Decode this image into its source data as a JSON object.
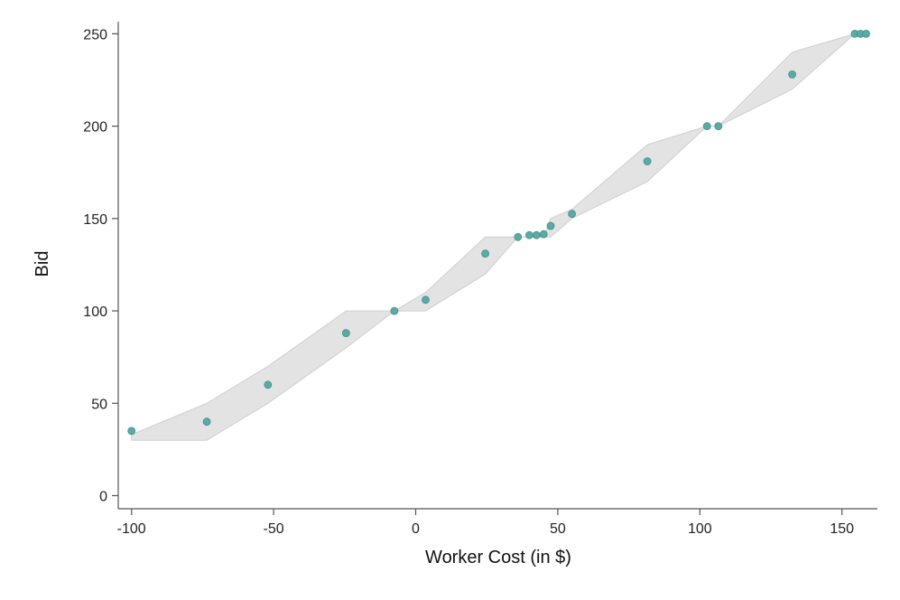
{
  "chart_data": {
    "type": "scatter",
    "title": "",
    "xlabel": "Worker Cost (in $)",
    "ylabel": "Bid",
    "xlim": [
      -105,
      162
    ],
    "ylim": [
      -7,
      253
    ],
    "xticks": [
      -100,
      -50,
      0,
      50,
      100,
      150
    ],
    "xtick_labels": [
      "-100",
      "-50",
      "0",
      "50",
      "100",
      "150"
    ],
    "yticks": [
      0,
      50,
      100,
      150,
      200,
      250
    ],
    "ytick_labels": [
      "0",
      "50",
      "100",
      "150",
      "200",
      "250"
    ],
    "grid": false,
    "legend": null,
    "series": [
      {
        "type": "scatter",
        "color": "#5aaaa5",
        "points": [
          {
            "x": -100,
            "y": 35
          },
          {
            "x": -73.5,
            "y": 40
          },
          {
            "x": -52,
            "y": 60
          },
          {
            "x": -24.5,
            "y": 88
          },
          {
            "x": -7.5,
            "y": 100
          },
          {
            "x": 3.5,
            "y": 106
          },
          {
            "x": 24.5,
            "y": 131
          },
          {
            "x": 36,
            "y": 140
          },
          {
            "x": 40,
            "y": 141
          },
          {
            "x": 42.5,
            "y": 141
          },
          {
            "x": 45,
            "y": 141.5
          },
          {
            "x": 47.5,
            "y": 146
          },
          {
            "x": 55,
            "y": 152.5
          },
          {
            "x": 81.5,
            "y": 181
          },
          {
            "x": 102.5,
            "y": 200
          },
          {
            "x": 106.5,
            "y": 200
          },
          {
            "x": 132.5,
            "y": 228
          },
          {
            "x": 154.5,
            "y": 250
          },
          {
            "x": 156.5,
            "y": 250
          },
          {
            "x": 158.5,
            "y": 250
          }
        ]
      },
      {
        "type": "area_band",
        "color": "#d9d9d9",
        "upper": [
          {
            "x": -100,
            "y": 33
          },
          {
            "x": -73.5,
            "y": 50
          },
          {
            "x": -52,
            "y": 70
          },
          {
            "x": -24.5,
            "y": 100
          },
          {
            "x": -7.5,
            "y": 100
          },
          {
            "x": 3.5,
            "y": 110
          },
          {
            "x": 24.5,
            "y": 140
          },
          {
            "x": 36,
            "y": 140
          },
          {
            "x": 45,
            "y": 140
          },
          {
            "x": 47.5,
            "y": 150
          },
          {
            "x": 55,
            "y": 155
          },
          {
            "x": 81.5,
            "y": 190
          },
          {
            "x": 102.5,
            "y": 200
          },
          {
            "x": 106.5,
            "y": 200
          },
          {
            "x": 132.5,
            "y": 240
          },
          {
            "x": 154.5,
            "y": 250
          }
        ],
        "lower": [
          {
            "x": -100,
            "y": 30
          },
          {
            "x": -73.5,
            "y": 30
          },
          {
            "x": -52,
            "y": 50
          },
          {
            "x": -24.5,
            "y": 80
          },
          {
            "x": -7.5,
            "y": 100
          },
          {
            "x": 3.5,
            "y": 100
          },
          {
            "x": 24.5,
            "y": 120
          },
          {
            "x": 36,
            "y": 140
          },
          {
            "x": 45,
            "y": 140
          },
          {
            "x": 47.5,
            "y": 140
          },
          {
            "x": 55,
            "y": 150
          },
          {
            "x": 81.5,
            "y": 170
          },
          {
            "x": 102.5,
            "y": 200
          },
          {
            "x": 106.5,
            "y": 200
          },
          {
            "x": 132.5,
            "y": 220
          },
          {
            "x": 154.5,
            "y": 250
          }
        ]
      }
    ]
  }
}
